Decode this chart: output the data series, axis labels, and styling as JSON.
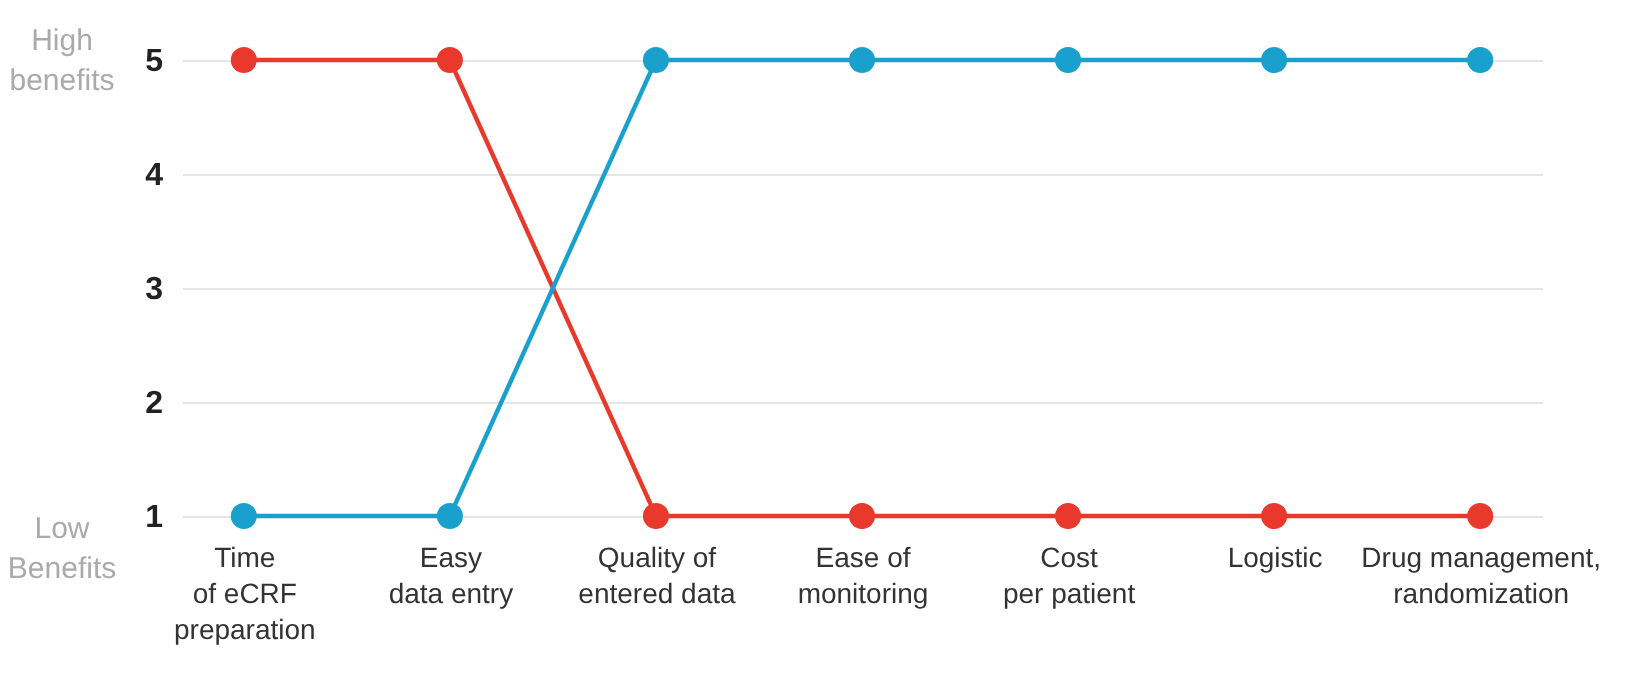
{
  "chart_data": {
    "type": "line",
    "categories": [
      "Time\nof eCRF\npreparation",
      "Easy\ndata entry",
      "Quality of\nentered data",
      "Ease of\nmonitoring",
      "Cost\nper patient",
      "Logistic",
      "Drug management,\nrandomization"
    ],
    "series": [
      {
        "color": "#e8392c",
        "values": [
          5,
          5,
          1,
          1,
          1,
          1,
          1
        ]
      },
      {
        "color": "#1aa0cc",
        "values": [
          1,
          1,
          5,
          5,
          5,
          5,
          5
        ]
      }
    ],
    "ylim": [
      1,
      5
    ],
    "yticks": [
      1,
      2,
      3,
      4,
      5
    ],
    "grid": "y",
    "legend": false,
    "marker": "circle",
    "line_style": "solid",
    "annotations": [
      "High benefits",
      "Low Benefits"
    ]
  }
}
